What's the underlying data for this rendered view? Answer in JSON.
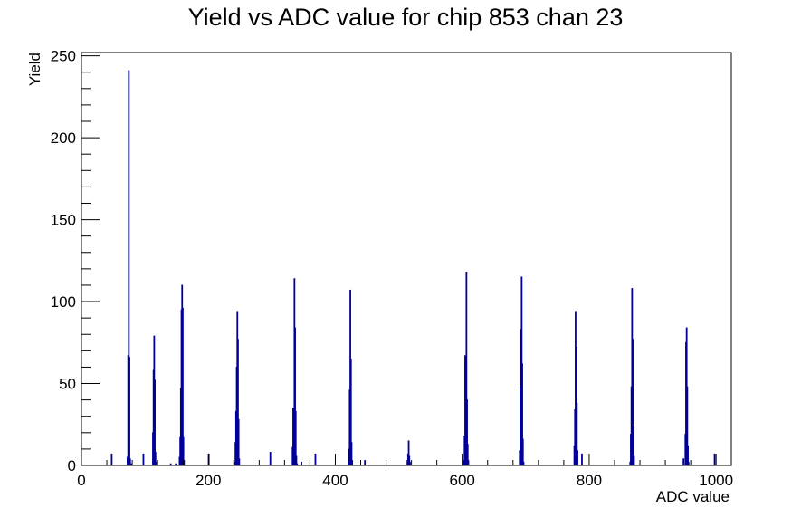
{
  "chart_data": {
    "type": "histogram",
    "title": "Yield vs ADC value for chip 853 chan 23",
    "xlabel": "ADC value",
    "ylabel": "Yield",
    "xlim": [
      0,
      1024
    ],
    "ylim": [
      0,
      252
    ],
    "x_ticks": [
      0,
      200,
      400,
      600,
      800,
      1000
    ],
    "y_ticks": [
      0,
      50,
      100,
      150,
      200,
      250
    ],
    "line_color": "#000099",
    "grid": false,
    "legend": "none",
    "bins": [
      [
        47,
        7
      ],
      [
        72,
        5
      ],
      [
        73,
        67
      ],
      [
        74,
        241
      ],
      [
        75,
        66
      ],
      [
        76,
        4
      ],
      [
        78,
        1
      ],
      [
        97,
        7
      ],
      [
        112,
        20
      ],
      [
        113,
        58
      ],
      [
        114,
        79
      ],
      [
        115,
        52
      ],
      [
        116,
        8
      ],
      [
        117,
        2
      ],
      [
        140,
        1
      ],
      [
        148,
        1
      ],
      [
        154,
        5
      ],
      [
        155,
        17
      ],
      [
        156,
        47
      ],
      [
        157,
        95
      ],
      [
        158,
        110
      ],
      [
        159,
        96
      ],
      [
        160,
        17
      ],
      [
        161,
        3
      ],
      [
        200,
        7
      ],
      [
        241,
        2
      ],
      [
        242,
        14
      ],
      [
        243,
        33
      ],
      [
        244,
        60
      ],
      [
        245,
        94
      ],
      [
        246,
        77
      ],
      [
        247,
        28
      ],
      [
        248,
        4
      ],
      [
        297,
        8
      ],
      [
        332,
        11
      ],
      [
        333,
        35
      ],
      [
        334,
        22
      ],
      [
        335,
        114
      ],
      [
        336,
        84
      ],
      [
        337,
        33
      ],
      [
        338,
        6
      ],
      [
        339,
        1
      ],
      [
        346,
        2
      ],
      [
        368,
        7
      ],
      [
        420,
        2
      ],
      [
        421,
        10
      ],
      [
        422,
        46
      ],
      [
        423,
        107
      ],
      [
        424,
        65
      ],
      [
        425,
        14
      ],
      [
        426,
        3
      ],
      [
        446,
        3
      ],
      [
        513,
        3
      ],
      [
        514,
        7
      ],
      [
        515,
        15
      ],
      [
        516,
        6
      ],
      [
        517,
        2
      ],
      [
        600,
        7
      ],
      [
        602,
        3
      ],
      [
        603,
        18
      ],
      [
        604,
        67
      ],
      [
        605,
        32
      ],
      [
        606,
        118
      ],
      [
        607,
        40
      ],
      [
        608,
        13
      ],
      [
        609,
        3
      ],
      [
        690,
        9
      ],
      [
        691,
        48
      ],
      [
        692,
        83
      ],
      [
        693,
        115
      ],
      [
        694,
        62
      ],
      [
        695,
        16
      ],
      [
        696,
        2
      ],
      [
        776,
        12
      ],
      [
        777,
        34
      ],
      [
        778,
        94
      ],
      [
        779,
        72
      ],
      [
        780,
        38
      ],
      [
        781,
        9
      ],
      [
        788,
        7
      ],
      [
        864,
        2
      ],
      [
        865,
        19
      ],
      [
        866,
        48
      ],
      [
        867,
        108
      ],
      [
        868,
        77
      ],
      [
        869,
        24
      ],
      [
        870,
        6
      ],
      [
        948,
        4
      ],
      [
        951,
        19
      ],
      [
        952,
        75
      ],
      [
        953,
        84
      ],
      [
        954,
        48
      ],
      [
        955,
        12
      ],
      [
        956,
        2
      ],
      [
        997,
        7
      ]
    ]
  }
}
